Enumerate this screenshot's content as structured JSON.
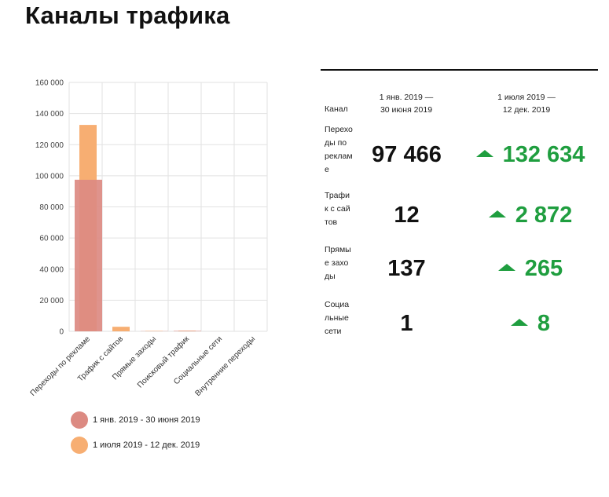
{
  "page": {
    "title": "Каналы трафика"
  },
  "chart_data": {
    "type": "bar",
    "categories": [
      "Переходы по рекламе",
      "Трафик с сайтов",
      "Прямые заходы",
      "Поисковый трафик",
      "Социальные сети",
      "Внутренние переходы"
    ],
    "series": [
      {
        "name": "1 янв. 2019 - 30 июня 2019",
        "values": [
          97466,
          12,
          137,
          300,
          1,
          0
        ],
        "color": "#dc8a82"
      },
      {
        "name": "1 июля 2019 - 12 дек. 2019",
        "values": [
          132634,
          2872,
          265,
          400,
          8,
          0
        ],
        "color": "#f7ae72"
      }
    ],
    "yticks": [
      "0",
      "20 000",
      "40 000",
      "60 000",
      "80 000",
      "100 000",
      "120 000",
      "140 000",
      "160 000"
    ],
    "ylim": [
      0,
      160000
    ],
    "grid": true,
    "legend": "bottom-left"
  },
  "table": {
    "header": {
      "channel": "Канал",
      "period1_line1": "1 янв. 2019 —",
      "period1_line2": "30 июня 2019",
      "period2_line1": "1 июля 2019 —",
      "period2_line2": "12 дек. 2019"
    },
    "rows": [
      {
        "name": "Переходы по рекламе",
        "v1": "97 466",
        "v2": "132 634",
        "trend": "up"
      },
      {
        "name": "Трафик с сайтов",
        "v1": "12",
        "v2": "2 872",
        "trend": "up"
      },
      {
        "name": "Прямые заходы",
        "v1": "137",
        "v2": "265",
        "trend": "up"
      },
      {
        "name": "Социальные сети",
        "v1": "1",
        "v2": "8",
        "trend": "up"
      }
    ],
    "trend_color": "#1f9e3f"
  }
}
